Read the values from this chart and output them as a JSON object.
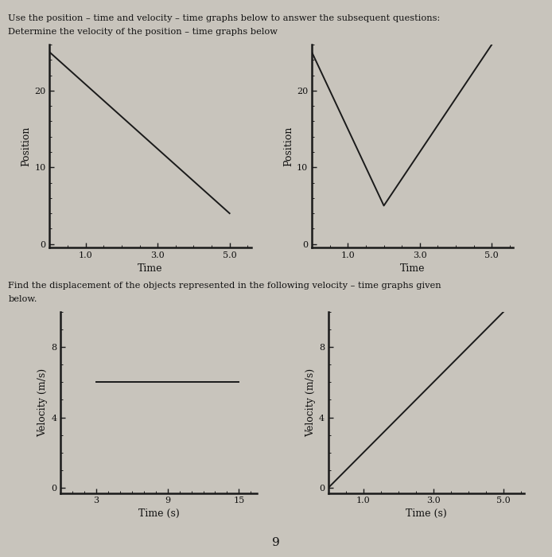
{
  "bg_color": "#c8c4bc",
  "text_color": "#111111",
  "line_color": "#1a1a1a",
  "header_text1": "Use the position – time and velocity – time graphs below to answer the subsequent questions:",
  "header_text2": "Determine the velocity of the position – time graphs below",
  "mid_text1": "Find the displacement of the objects represented in the following velocity – time graphs given",
  "mid_text2": "below.",
  "footer_text": "9",
  "graph1": {
    "xlabel": "Time",
    "ylabel": "Position",
    "xticks": [
      1.0,
      3.0,
      5.0
    ],
    "xticklabels": [
      "1.0",
      "3.0",
      "5.0"
    ],
    "yticks": [
      0,
      10,
      20
    ],
    "xlim": [
      0,
      5.6
    ],
    "ylim": [
      -0.5,
      26
    ],
    "line_x": [
      0,
      5.0
    ],
    "line_y": [
      25,
      4
    ]
  },
  "graph2": {
    "xlabel": "Time",
    "ylabel": "Position",
    "xticks": [
      1.0,
      3.0,
      5.0
    ],
    "xticklabels": [
      "1.0",
      "3.0",
      "5.0"
    ],
    "yticks": [
      0,
      10,
      20
    ],
    "xlim": [
      0,
      5.6
    ],
    "ylim": [
      -0.5,
      26
    ],
    "line_x": [
      0,
      2.0,
      5.0
    ],
    "line_y": [
      25,
      5,
      26
    ]
  },
  "graph3": {
    "xlabel": "Time (s)",
    "ylabel": "Velocity (m/s)",
    "xticks": [
      3,
      9,
      15
    ],
    "xticklabels": [
      "3",
      "9",
      "15"
    ],
    "yticks": [
      0,
      4,
      8
    ],
    "xlim": [
      0,
      16.5
    ],
    "ylim": [
      -0.3,
      10
    ],
    "line_x": [
      3,
      15
    ],
    "line_y": [
      6,
      6
    ]
  },
  "graph4": {
    "xlabel": "Time (s)",
    "ylabel": "Velocity (m/s)",
    "xticks": [
      1.0,
      3.0,
      5.0
    ],
    "xticklabels": [
      "1.0",
      "3.0",
      "5.0"
    ],
    "yticks": [
      0,
      4,
      8
    ],
    "xlim": [
      0,
      5.6
    ],
    "ylim": [
      -0.3,
      10
    ],
    "line_x": [
      0,
      5.0
    ],
    "line_y": [
      0,
      10
    ]
  }
}
